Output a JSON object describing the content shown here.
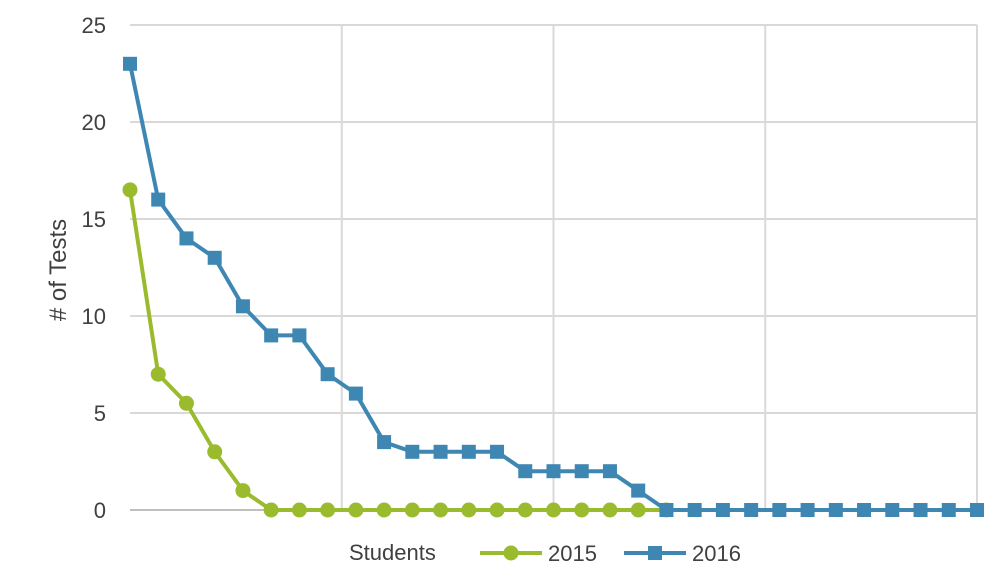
{
  "chart_data": {
    "type": "line",
    "title": "",
    "xlabel": "Students",
    "ylabel": "# of Tests",
    "ylim": [
      0,
      25
    ],
    "yticks": [
      "0",
      "5",
      "10",
      "15",
      "20",
      "25"
    ],
    "grid": true,
    "legend_position": "bottom",
    "colors": {
      "2015": "#9bbb2f",
      "2016": "#3e87b3",
      "grid": "#d9d9d9",
      "axis": "#bfbfbf"
    },
    "series": [
      {
        "name": "2015",
        "marker": "circle",
        "x": [
          0,
          1,
          2,
          3,
          4,
          5,
          6,
          7,
          8,
          9,
          10,
          11,
          12,
          13,
          14,
          15,
          16,
          17,
          18,
          19
        ],
        "values": [
          16.5,
          7,
          5.5,
          3,
          1,
          0,
          0,
          0,
          0,
          0,
          0,
          0,
          0,
          0,
          0,
          0,
          0,
          0,
          0,
          0
        ]
      },
      {
        "name": "2016",
        "marker": "square",
        "x": [
          0,
          1,
          2,
          3,
          4,
          5,
          6,
          7,
          8,
          9,
          10,
          11,
          12,
          13,
          14,
          15,
          16,
          17,
          18,
          19,
          20,
          21,
          22,
          23,
          24,
          25,
          26,
          27,
          28,
          29,
          30
        ],
        "values": [
          23,
          16,
          14,
          13,
          10.5,
          9,
          9,
          7,
          6,
          3.5,
          3,
          3,
          3,
          3,
          2,
          2,
          2,
          2,
          1,
          0,
          0,
          0,
          0,
          0,
          0,
          0,
          0,
          0,
          0,
          0,
          0
        ]
      }
    ]
  }
}
